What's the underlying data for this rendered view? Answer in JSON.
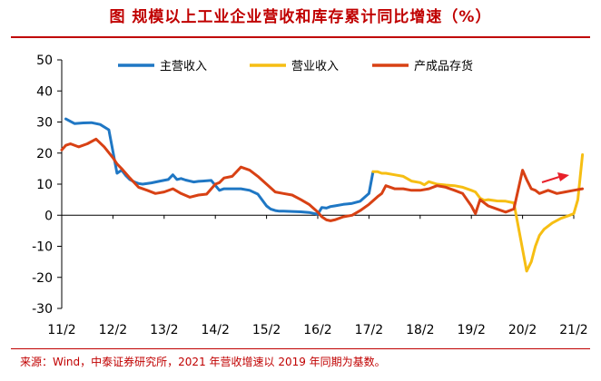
{
  "title": "图 规模以上工业企业营收和库存累计同比增速（%）",
  "source": "来源：Wind，中泰证券研究所，2021 年营收增速以 2019 年同期为基数。",
  "chart_data": {
    "type": "line",
    "categories": [
      "11/2",
      "12/2",
      "13/2",
      "14/2",
      "15/2",
      "16/2",
      "17/2",
      "18/2",
      "19/2",
      "20/2",
      "21/2"
    ],
    "ylim": [
      -30,
      50
    ],
    "ytick_step": 10,
    "grid": false,
    "legend": "top",
    "series": [
      {
        "name": "主营收入",
        "color": "#1f77c4",
        "x": [
          2011.08,
          2011.17,
          2011.25,
          2011.42,
          2011.58,
          2011.75,
          2011.92,
          2012.08,
          2012.17,
          2012.25,
          2012.33,
          2012.42,
          2012.5,
          2012.58,
          2012.75,
          2012.92,
          2013.08,
          2013.17,
          2013.25,
          2013.33,
          2013.42,
          2013.5,
          2013.58,
          2013.67,
          2013.75,
          2013.92,
          2014.08,
          2014.17,
          2014.33,
          2014.5,
          2014.67,
          2014.83,
          2015.0,
          2015.08,
          2015.17,
          2015.25,
          2015.33,
          2015.5,
          2015.67,
          2015.83,
          2016.0,
          2016.08,
          2016.17,
          2016.25,
          2016.33,
          2016.5,
          2016.67,
          2016.83,
          2017.0,
          2017.08
        ],
        "y": [
          31,
          30.2,
          29.5,
          29.7,
          29.8,
          29.2,
          27.5,
          13.5,
          14.5,
          12.8,
          11.5,
          10.7,
          10.2,
          10.0,
          10.4,
          11.0,
          11.5,
          13.0,
          11.5,
          11.8,
          11.3,
          11.0,
          10.7,
          10.9,
          11.0,
          11.2,
          8.0,
          8.5,
          8.5,
          8.5,
          8.0,
          6.8,
          3.0,
          2.0,
          1.5,
          1.3,
          1.3,
          1.2,
          1.1,
          0.9,
          0.3,
          2.5,
          2.3,
          2.8,
          3.0,
          3.5,
          3.8,
          4.5,
          7.0,
          14.0
        ]
      },
      {
        "name": "营业收入",
        "color": "#f6be13",
        "x": [
          2017.08,
          2017.17,
          2017.25,
          2017.33,
          2017.5,
          2017.67,
          2017.83,
          2018.0,
          2018.08,
          2018.17,
          2018.33,
          2018.5,
          2018.67,
          2018.83,
          2019.0,
          2019.08,
          2019.17,
          2019.25,
          2019.33,
          2019.5,
          2019.67,
          2019.83,
          2020.08,
          2020.17,
          2020.25,
          2020.33,
          2020.42,
          2020.58,
          2020.75,
          2020.92,
          2021.0,
          2021.08,
          2021.17
        ],
        "y": [
          14,
          14.0,
          13.5,
          13.5,
          13.0,
          12.5,
          11.0,
          10.5,
          9.8,
          10.8,
          10.0,
          9.7,
          9.5,
          9.0,
          8.0,
          7.5,
          5.5,
          4.8,
          5.0,
          4.6,
          4.5,
          4.0,
          -18.0,
          -15.0,
          -10.0,
          -6.5,
          -4.5,
          -2.5,
          -1.0,
          0.0,
          0.5,
          5.0,
          19.5
        ]
      },
      {
        "name": "产成品存货",
        "color": "#d84114",
        "x": [
          2011.0,
          2011.08,
          2011.17,
          2011.33,
          2011.5,
          2011.67,
          2011.83,
          2012.0,
          2012.08,
          2012.17,
          2012.33,
          2012.5,
          2012.67,
          2012.83,
          2013.0,
          2013.17,
          2013.33,
          2013.5,
          2013.67,
          2013.83,
          2014.0,
          2014.08,
          2014.17,
          2014.33,
          2014.5,
          2014.67,
          2014.83,
          2015.0,
          2015.17,
          2015.33,
          2015.5,
          2015.67,
          2015.83,
          2016.0,
          2016.08,
          2016.17,
          2016.25,
          2016.33,
          2016.5,
          2016.67,
          2016.83,
          2017.0,
          2017.17,
          2017.25,
          2017.33,
          2017.5,
          2017.67,
          2017.83,
          2018.0,
          2018.17,
          2018.33,
          2018.5,
          2018.67,
          2018.83,
          2019.0,
          2019.08,
          2019.17,
          2019.25,
          2019.33,
          2019.5,
          2019.67,
          2019.83,
          2020.0,
          2020.08,
          2020.17,
          2020.25,
          2020.33,
          2020.5,
          2020.67,
          2020.83,
          2021.0,
          2021.17
        ],
        "y": [
          21,
          22.5,
          23.0,
          22.0,
          23.0,
          24.5,
          22.0,
          18.5,
          16.5,
          15.0,
          12.0,
          9.0,
          8.0,
          7.0,
          7.5,
          8.5,
          7.0,
          5.8,
          6.5,
          6.8,
          10.0,
          10.5,
          12.0,
          12.5,
          15.5,
          14.5,
          12.5,
          10.0,
          7.5,
          7.0,
          6.5,
          5.0,
          3.5,
          1.0,
          -0.5,
          -1.5,
          -1.8,
          -1.5,
          -0.5,
          0.0,
          1.5,
          3.5,
          6.0,
          7.0,
          9.5,
          8.5,
          8.5,
          8.0,
          8.0,
          8.5,
          9.5,
          9.0,
          8.0,
          7.0,
          3.0,
          0.5,
          5.0,
          4.0,
          3.0,
          2.0,
          1.0,
          2.0,
          14.5,
          11.5,
          8.5,
          8.0,
          7.0,
          8.0,
          7.0,
          7.5,
          8.0,
          8.5
        ]
      }
    ]
  }
}
